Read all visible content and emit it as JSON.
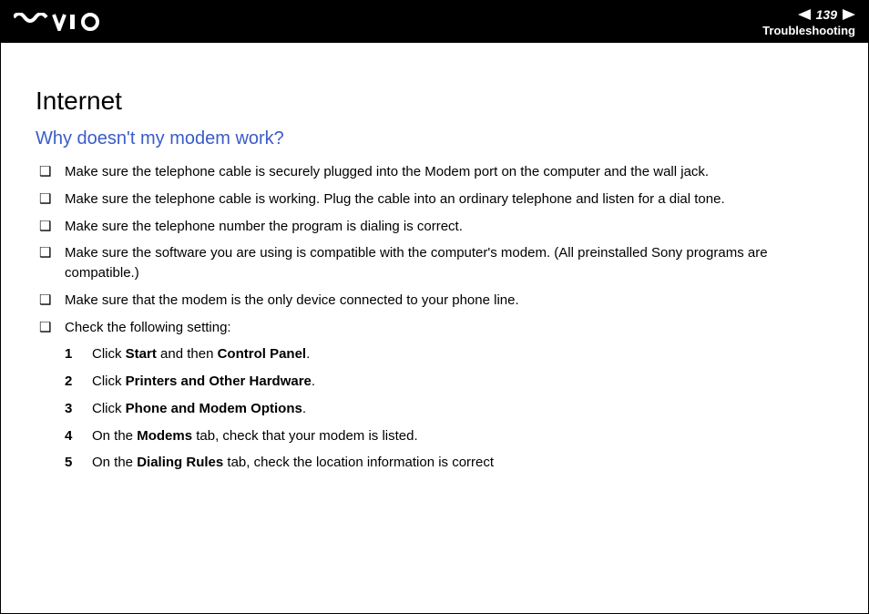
{
  "header": {
    "page_number": "139",
    "section": "Troubleshooting",
    "arrow_color": "#ffffff",
    "bg_color": "#000000",
    "text_color": "#ffffff"
  },
  "content": {
    "title": "Internet",
    "subtitle": "Why doesn't my modem work?",
    "subtitle_color": "#3a5cc8",
    "bullet_glyph": "❑",
    "bullets": [
      {
        "text": "Make sure the telephone cable is securely plugged into the Modem port on the computer and the wall jack."
      },
      {
        "text": "Make sure the telephone cable is working. Plug the cable into an ordinary telephone and listen for a dial tone."
      },
      {
        "text": "Make sure the telephone number the program is dialing is correct."
      },
      {
        "text": "Make sure the software you are using is compatible with the computer's modem. (All preinstalled Sony programs are compatible.)"
      },
      {
        "text": "Make sure that the modem is the only device connected to your phone line."
      },
      {
        "text": "Check the following setting:"
      }
    ],
    "steps": [
      {
        "num": "1",
        "parts": [
          {
            "t": "Click "
          },
          {
            "t": "Start",
            "b": true
          },
          {
            "t": " and then "
          },
          {
            "t": "Control Panel",
            "b": true
          },
          {
            "t": "."
          }
        ]
      },
      {
        "num": "2",
        "parts": [
          {
            "t": "Click "
          },
          {
            "t": "Printers and Other Hardware",
            "b": true
          },
          {
            "t": "."
          }
        ]
      },
      {
        "num": "3",
        "parts": [
          {
            "t": "Click "
          },
          {
            "t": "Phone and Modem Options",
            "b": true
          },
          {
            "t": "."
          }
        ]
      },
      {
        "num": "4",
        "parts": [
          {
            "t": "On the "
          },
          {
            "t": "Modems",
            "b": true
          },
          {
            "t": " tab, check that your modem is listed."
          }
        ]
      },
      {
        "num": "5",
        "parts": [
          {
            "t": "On the "
          },
          {
            "t": "Dialing Rules",
            "b": true
          },
          {
            "t": " tab, check the location information is correct"
          }
        ]
      }
    ]
  }
}
